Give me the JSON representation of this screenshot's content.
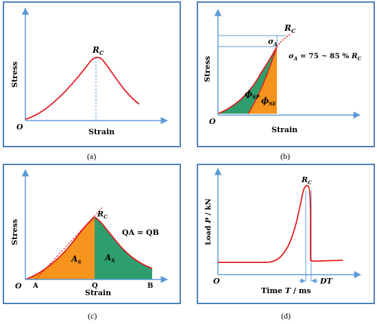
{
  "panels": {
    "a": {
      "caption": "(a)",
      "xlabel": "Strain",
      "ylabel": "Stress",
      "origin": "O",
      "peak": "R",
      "peak_sub": "C"
    },
    "b": {
      "caption": "(b)",
      "xlabel": "Strain",
      "ylabel": "Stress",
      "origin": "O",
      "peak": "R",
      "peak_sub": "C",
      "sigma": "σ",
      "sigma_sub": "A",
      "equation_mid": " = 75 ~ 85 % ",
      "phi": "ϕ",
      "phi_sp_sub": "SP",
      "phi_se_sub": "SE"
    },
    "c": {
      "caption": "(c)",
      "xlabel": "Strain",
      "ylabel": "Stress",
      "origin": "O",
      "peak": "R",
      "peak_sub": "C",
      "ratio": "QA = QB",
      "area_left": "A",
      "area_left_sub": "S",
      "area_right": "A",
      "area_right_sub": "X",
      "point_a": "A",
      "point_q": "Q",
      "point_b": "B"
    },
    "d": {
      "caption": "(d)",
      "xlabel": "Time",
      "xvar": "T",
      "xunit": " / ms",
      "ylabel_pre": "Load",
      "yvar": "P",
      "yunit": " / kN",
      "origin": "O",
      "peak": "R",
      "peak_sub": "C",
      "dt": "DT"
    }
  },
  "colors": {
    "frame": "#4a7ebb",
    "axis": "#5b9bd5",
    "curve": "#e31a1c",
    "fill_green": "#2e9e6e",
    "fill_orange": "#f7941d"
  }
}
